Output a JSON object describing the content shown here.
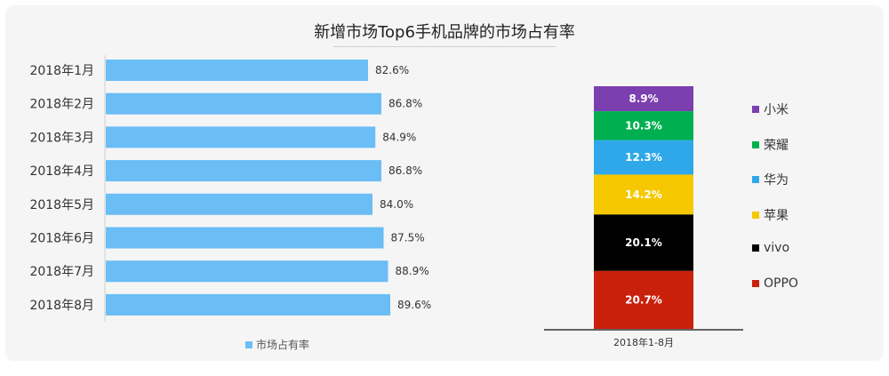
{
  "title": "新增市场Top6手机品牌的市场占有率",
  "chart_data": [
    {
      "type": "bar",
      "orientation": "horizontal",
      "categories": [
        "2018年1月",
        "2018年2月",
        "2018年3月",
        "2018年4月",
        "2018年5月",
        "2018年6月",
        "2018年7月",
        "2018年8月"
      ],
      "values": [
        82.6,
        86.8,
        84.9,
        86.8,
        84.0,
        87.5,
        88.9,
        89.6
      ],
      "value_labels": [
        "82.6%",
        "86.8%",
        "84.9%",
        "86.8%",
        "84.0%",
        "87.5%",
        "88.9%",
        "89.6%"
      ],
      "series_name": "市场占有率",
      "color": "#6bbdf5",
      "xlim": [
        0,
        100
      ],
      "legend_position": "bottom"
    },
    {
      "type": "stacked_bar",
      "category": "2018年1-8月",
      "segments": [
        {
          "name": "OPPO",
          "value": 20.7,
          "label": "20.7%",
          "color": "#c9200c"
        },
        {
          "name": "vivo",
          "value": 20.1,
          "label": "20.1%",
          "color": "#000000"
        },
        {
          "name": "苹果",
          "value": 14.2,
          "label": "14.2%",
          "color": "#f5c800"
        },
        {
          "name": "华为",
          "value": 12.3,
          "label": "12.3%",
          "color": "#2fa8ea"
        },
        {
          "name": "荣耀",
          "value": 10.3,
          "label": "10.3%",
          "color": "#00b050"
        },
        {
          "name": "小米",
          "value": 8.9,
          "label": "8.9%",
          "color": "#7b3fb0"
        }
      ],
      "legend_order": [
        "小米",
        "荣耀",
        "华为",
        "苹果",
        "vivo",
        "OPPO"
      ],
      "legend_position": "right"
    }
  ]
}
